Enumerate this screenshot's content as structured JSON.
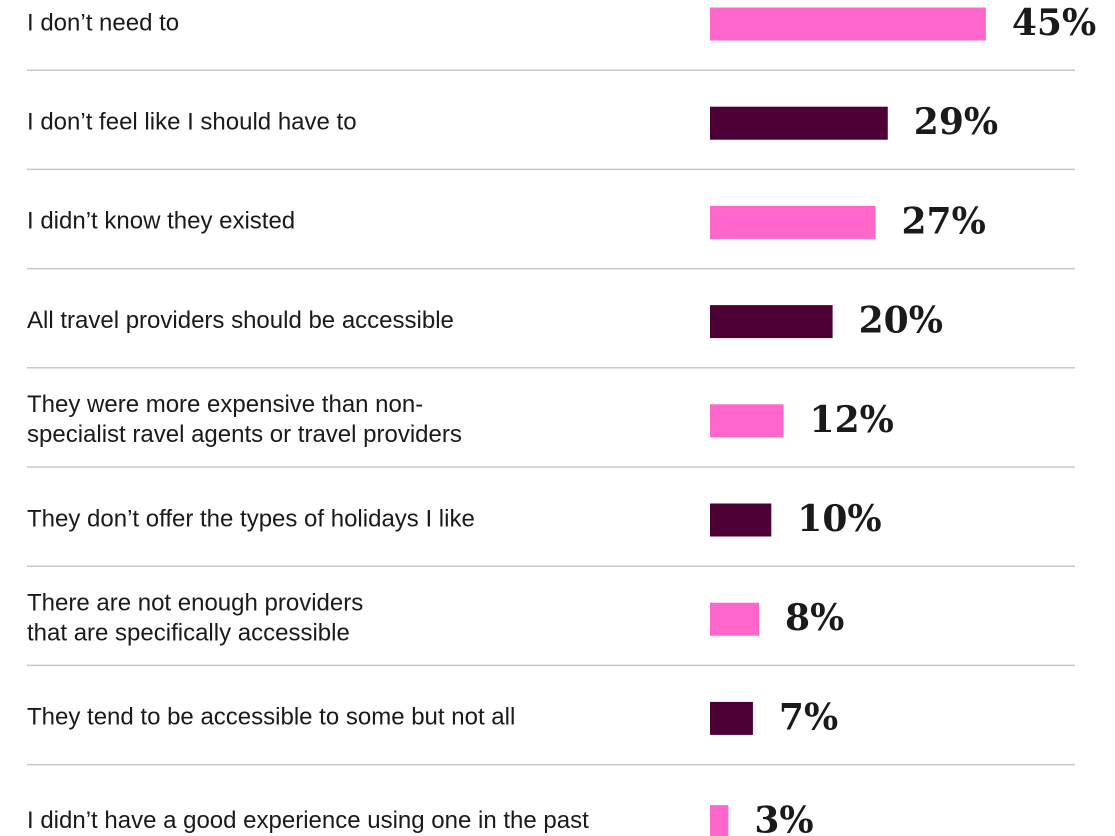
{
  "chart_data": {
    "type": "bar",
    "orientation": "horizontal",
    "categories": [
      [
        "I don’t need to"
      ],
      [
        "I don’t feel like I should have to"
      ],
      [
        "I didn’t know they existed"
      ],
      [
        "All travel providers should be accessible"
      ],
      [
        "They were more expensive than non-",
        "specialist ravel agents or travel providers"
      ],
      [
        "They don’t offer the types of holidays I like"
      ],
      [
        "There are not enough providers",
        "that are specifically accessible"
      ],
      [
        "They tend to be accessible to some  but not all"
      ],
      [
        "I didn’t have a good experience using one in the past"
      ]
    ],
    "values": [
      45,
      29,
      27,
      20,
      12,
      10,
      8,
      7,
      3
    ],
    "value_labels": [
      "45%",
      "29%",
      "27%",
      "20%",
      "12%",
      "10%",
      "8%",
      "7%",
      "3%"
    ],
    "bar_colors": [
      "#ff66cc",
      "#4d0033",
      "#ff66cc",
      "#4d0033",
      "#ff66cc",
      "#4d0033",
      "#ff66cc",
      "#4d0033",
      "#ff66cc"
    ],
    "divider_color": "#c8c8c8",
    "title": "",
    "xlabel": "",
    "ylabel": "",
    "grid": false,
    "legend": "none"
  }
}
